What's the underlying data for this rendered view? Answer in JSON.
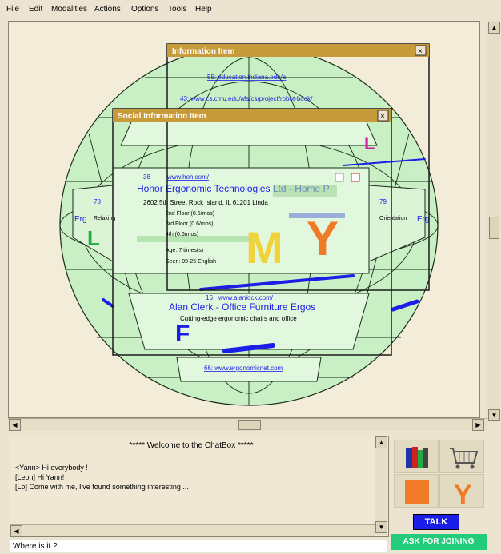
{
  "menu": {
    "items": [
      {
        "label": "File"
      },
      {
        "label": "Edit"
      },
      {
        "label": "Modalities"
      },
      {
        "label": "Actions"
      },
      {
        "label": "Options"
      },
      {
        "label": "Tools"
      },
      {
        "label": "Help"
      }
    ]
  },
  "info_window": {
    "title": "Information Item",
    "close": "×"
  },
  "social_window": {
    "title": "Social Information Item",
    "close": "×"
  },
  "scene": {
    "top_links": [
      "55: education.indiana.edu/a",
      "43: www.cs.cmu.edu/afs/cs/project/robot-book/"
    ],
    "center_card": {
      "number": "38",
      "url": "www.hoh.com/",
      "title": "Honor Ergonomic Technologies Ltd - Home P",
      "address": "2602 5th Street Rock Island, IL 61201 Linda",
      "details": [
        "2nd Floor (0.6/mos)",
        "3rd Floor (0.6/mos)",
        "4th (0.6/mos)",
        "Age: 7 times(s)",
        "Seen: 09-25 English"
      ],
      "letters": [
        "M",
        "Y"
      ]
    },
    "left_card": {
      "number": "78",
      "title": "Erg",
      "text": "Relaxing"
    },
    "right_card": {
      "number": "79",
      "title": "Erg",
      "text": "Orientation"
    },
    "bottom_card": {
      "number": "16",
      "url": "www.alanlock.com/",
      "title": "Alan Clerk - Office Furniture Ergos",
      "subtitle": "Cutting-edge ergonomic chairs and office"
    },
    "bottom_link": "66: www.ergonomicnet.com",
    "avatar_letters": [
      "L",
      "F",
      "L"
    ]
  },
  "chat": {
    "header": "***** Welcome to the ChatBox *****",
    "messages": [
      "<Yann> Hi everybody !",
      "[Leon] Hi Yann!",
      "[Lo] Come with me, I've found something interesting ..."
    ],
    "input_value": "Where is it ?"
  },
  "modalities": {
    "icons": [
      "books-icon",
      "cart-icon",
      "orange-square-icon",
      "letter-y-icon"
    ],
    "y_letter": "Y"
  },
  "buttons": {
    "talk": "TALK",
    "join": "ASK FOR JOINING"
  },
  "colors": {
    "window_title": "#c79a3a",
    "sphere_fill": "#c8f0c4",
    "link": "#1a1ee6",
    "talk": "#1a1ee6",
    "join": "#22cc7a",
    "avatar_orange": "#f07a28"
  }
}
